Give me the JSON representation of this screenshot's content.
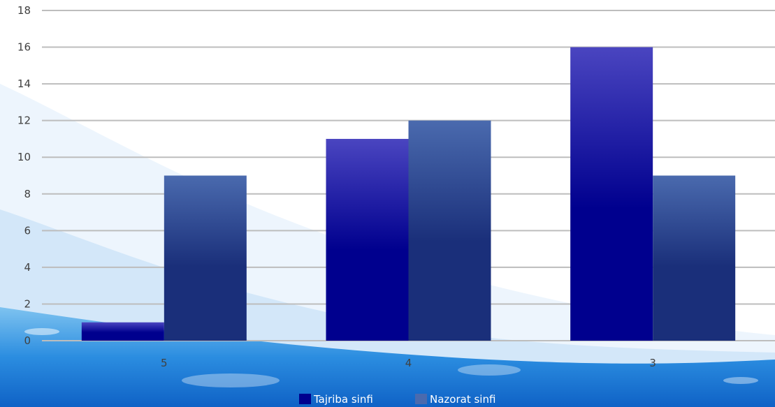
{
  "chart_data": {
    "type": "bar",
    "categories": [
      "5",
      "4",
      "3"
    ],
    "series": [
      {
        "name": "Tajriba sinfi",
        "values": [
          1,
          11,
          16
        ]
      },
      {
        "name": "Nazorat sinfi",
        "values": [
          9,
          12,
          9
        ]
      }
    ],
    "title": "",
    "xlabel": "",
    "ylabel": "",
    "ylim": [
      0,
      18
    ],
    "yticks": [
      0,
      2,
      4,
      6,
      8,
      10,
      12,
      14,
      16,
      18
    ],
    "grid": true,
    "legend_position": "bottom",
    "colors": {
      "series_0_top": "#4a45c0",
      "series_0_bottom": "#00008e",
      "series_1_top": "#4a6aae",
      "series_1_bottom": "#1a2f7a",
      "gridline": "#bdbdbd",
      "axis_text": "#404040"
    }
  }
}
